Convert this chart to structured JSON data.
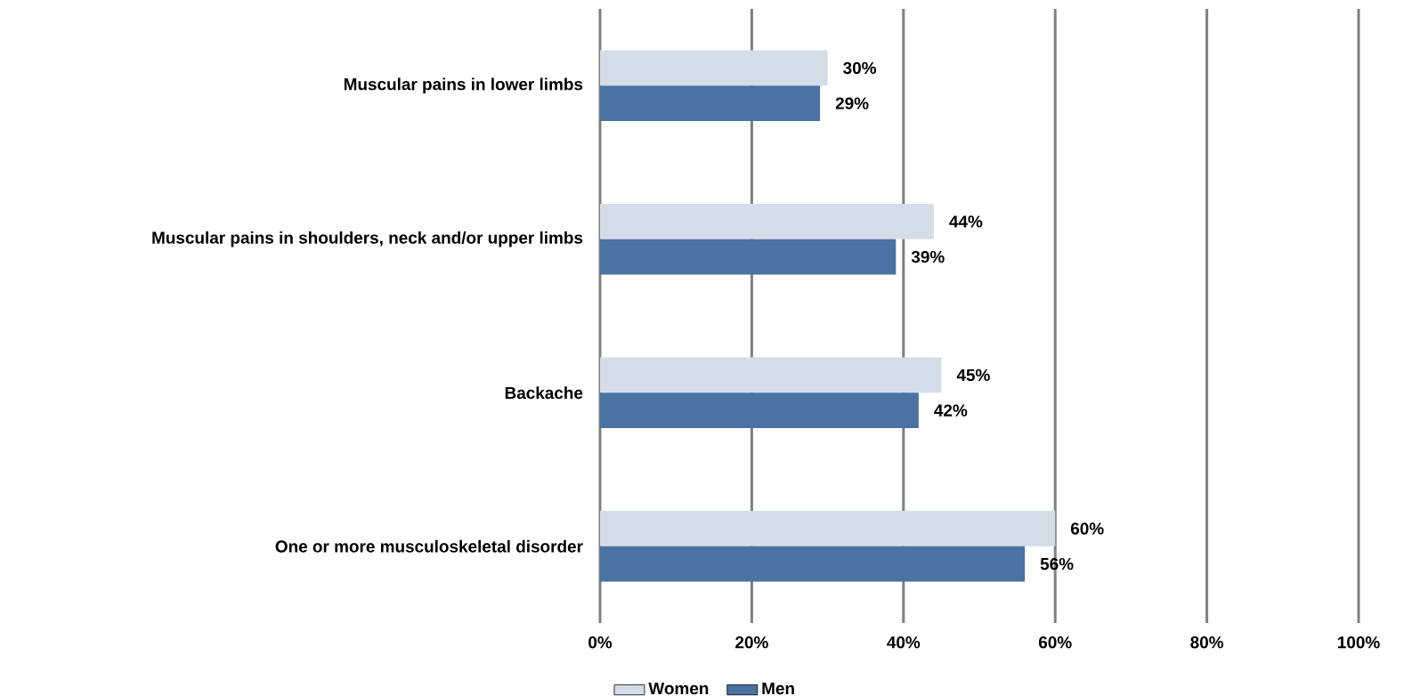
{
  "chart_data": {
    "type": "bar",
    "orientation": "horizontal",
    "categories": [
      "Muscular pains in lower limbs",
      "Muscular pains in shoulders, neck and/or upper limbs",
      "Backache",
      "One or more musculoskeletal disorder"
    ],
    "series": [
      {
        "name": "Women",
        "color": "#d3dde8",
        "values": [
          30,
          44,
          45,
          60
        ],
        "value_labels": [
          "30%",
          "44%",
          "45%",
          "60%"
        ]
      },
      {
        "name": "Men",
        "color": "#4a72a2",
        "values": [
          29,
          39,
          42,
          56
        ],
        "value_labels": [
          "29%",
          "39%",
          "42%",
          "56%"
        ]
      }
    ],
    "xlim": [
      0,
      100
    ],
    "xticks": [
      {
        "value": 0,
        "label": "0%"
      },
      {
        "value": 20,
        "label": "20%"
      },
      {
        "value": 40,
        "label": "40%"
      },
      {
        "value": 60,
        "label": "60%"
      },
      {
        "value": 80,
        "label": "80%"
      },
      {
        "value": 100,
        "label": "100%"
      }
    ],
    "grid": "x",
    "legend": "bottom"
  }
}
